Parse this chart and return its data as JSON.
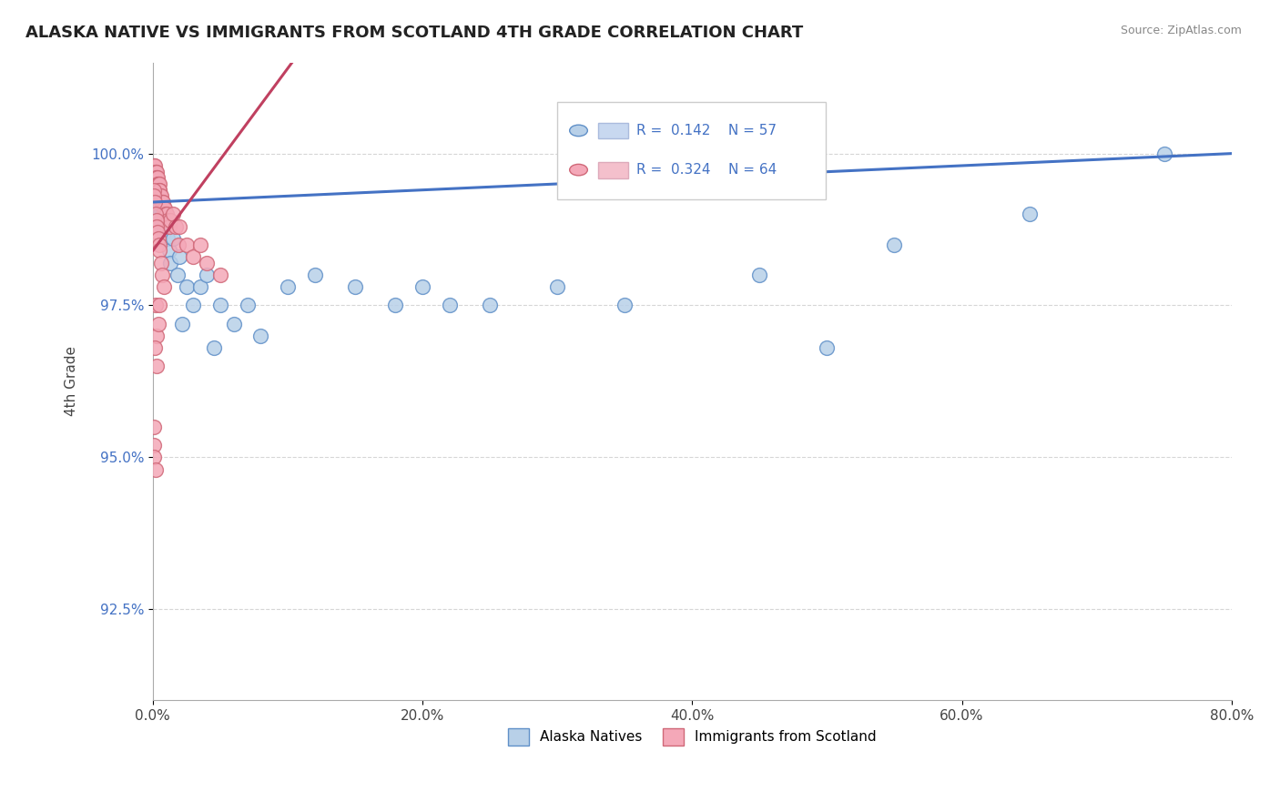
{
  "title": "ALASKA NATIVE VS IMMIGRANTS FROM SCOTLAND 4TH GRADE CORRELATION CHART",
  "source": "Source: ZipAtlas.com",
  "xlabel_ticks": [
    "0.0%",
    "20.0%",
    "40.0%",
    "60.0%",
    "80.0%"
  ],
  "xlabel_vals": [
    0.0,
    20.0,
    40.0,
    60.0,
    80.0
  ],
  "ylabel_ticks": [
    "92.5%",
    "95.0%",
    "97.5%",
    "100.0%"
  ],
  "ylabel_vals": [
    92.5,
    95.0,
    97.5,
    100.0
  ],
  "xlim": [
    0.0,
    80.0
  ],
  "ylim": [
    91.0,
    101.5
  ],
  "ylabel": "4th Grade",
  "legend_labels": [
    "Alaska Natives",
    "Immigrants from Scotland"
  ],
  "blue_color": "#b8d0e8",
  "pink_color": "#f4a8b8",
  "blue_edge_color": "#6090c8",
  "pink_edge_color": "#d06878",
  "blue_line_color": "#4472c4",
  "pink_line_color": "#c04060",
  "R_blue": 0.142,
  "N_blue": 57,
  "R_pink": 0.324,
  "N_pink": 64,
  "blue_line_x0": 0.0,
  "blue_line_y0": 99.2,
  "blue_line_x1": 80.0,
  "blue_line_y1": 100.0,
  "pink_line_x0": 0.0,
  "pink_line_y0": 98.6,
  "pink_line_x1": 5.0,
  "pink_line_y1": 99.8,
  "blue_x": [
    0.05,
    0.08,
    0.1,
    0.12,
    0.15,
    0.18,
    0.2,
    0.22,
    0.25,
    0.28,
    0.3,
    0.32,
    0.35,
    0.38,
    0.4,
    0.42,
    0.45,
    0.5,
    0.55,
    0.6,
    0.65,
    0.7,
    0.75,
    0.8,
    0.85,
    0.9,
    1.0,
    1.1,
    1.2,
    1.3,
    1.5,
    1.8,
    2.0,
    2.5,
    3.0,
    3.5,
    4.0,
    5.0,
    6.0,
    7.0,
    8.0,
    10.0,
    12.0,
    15.0,
    18.0,
    20.0,
    25.0,
    30.0,
    35.0,
    45.0,
    55.0,
    65.0,
    75.0,
    2.2,
    4.5,
    22.0,
    50.0
  ],
  "blue_y": [
    99.5,
    99.6,
    99.5,
    99.6,
    99.5,
    99.4,
    99.4,
    99.3,
    99.5,
    99.4,
    99.3,
    99.2,
    99.4,
    99.3,
    99.2,
    99.1,
    99.3,
    99.1,
    99.0,
    98.9,
    98.8,
    99.0,
    98.9,
    98.8,
    98.7,
    98.9,
    98.8,
    98.6,
    98.4,
    98.2,
    98.6,
    98.0,
    98.3,
    97.8,
    97.5,
    97.8,
    98.0,
    97.5,
    97.2,
    97.5,
    97.0,
    97.8,
    98.0,
    97.8,
    97.5,
    97.8,
    97.5,
    97.8,
    97.5,
    98.0,
    98.5,
    99.0,
    100.0,
    97.2,
    96.8,
    97.5,
    96.8
  ],
  "pink_x": [
    0.05,
    0.08,
    0.1,
    0.12,
    0.15,
    0.18,
    0.2,
    0.22,
    0.25,
    0.28,
    0.3,
    0.32,
    0.35,
    0.38,
    0.4,
    0.42,
    0.45,
    0.48,
    0.5,
    0.55,
    0.6,
    0.65,
    0.7,
    0.75,
    0.8,
    0.85,
    0.9,
    0.95,
    1.0,
    1.1,
    1.2,
    1.3,
    1.5,
    1.7,
    1.9,
    2.0,
    2.5,
    3.0,
    3.5,
    4.0,
    5.0,
    0.06,
    0.1,
    0.15,
    0.2,
    0.25,
    0.3,
    0.35,
    0.4,
    0.45,
    0.5,
    0.6,
    0.7,
    0.8,
    0.2,
    0.3,
    0.4,
    0.5,
    0.15,
    0.25,
    0.05,
    0.08,
    0.1,
    0.2
  ],
  "pink_y": [
    99.8,
    99.7,
    99.8,
    99.7,
    99.8,
    99.7,
    99.7,
    99.6,
    99.7,
    99.6,
    99.6,
    99.5,
    99.6,
    99.5,
    99.5,
    99.4,
    99.5,
    99.4,
    99.4,
    99.3,
    99.2,
    99.3,
    99.2,
    99.2,
    99.1,
    99.0,
    99.1,
    99.0,
    99.0,
    98.9,
    98.8,
    98.9,
    99.0,
    98.8,
    98.5,
    98.8,
    98.5,
    98.3,
    98.5,
    98.2,
    98.0,
    99.4,
    99.3,
    99.2,
    99.0,
    98.9,
    98.8,
    98.7,
    98.6,
    98.5,
    98.4,
    98.2,
    98.0,
    97.8,
    97.5,
    97.0,
    97.2,
    97.5,
    96.8,
    96.5,
    95.5,
    95.2,
    95.0,
    94.8
  ]
}
